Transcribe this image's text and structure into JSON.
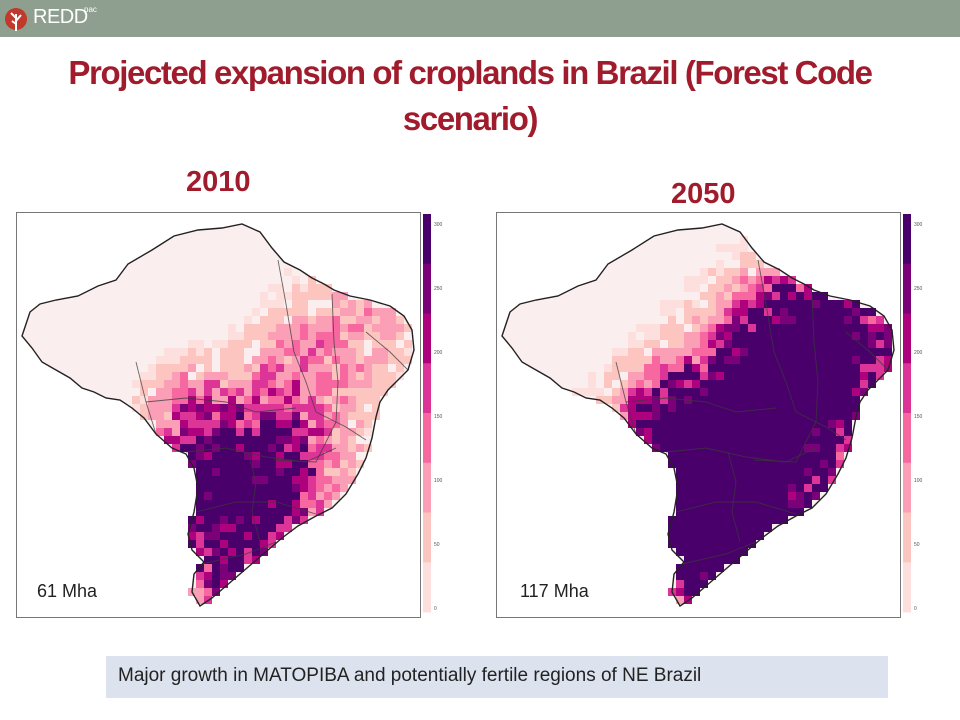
{
  "header": {
    "brand": "REDD",
    "brand_sup": "pac"
  },
  "title": "Projected expansion of croplands in Brazil (Forest Code scenario)",
  "panels": [
    {
      "year": "2010",
      "total": "61 Mha",
      "intensity": 1
    },
    {
      "year": "2050",
      "total": "117 Mha",
      "intensity": 2
    }
  ],
  "legend": {
    "ticks": [
      "300",
      "250",
      "200",
      "150",
      "100",
      "50",
      "0"
    ],
    "colors": [
      "#fde0dd",
      "#fcc5c0",
      "#fa9fb5",
      "#f768a1",
      "#dd3497",
      "#ae017e",
      "#7a0177",
      "#49006a"
    ]
  },
  "caption": "Major growth in MATOPIBA and potentially fertile regions of NE Brazil",
  "colors": {
    "title": "#a01c2c",
    "topbar": "#8e9e8f",
    "map_base": "#fbeeee",
    "caption_bg": "#dde3ee"
  }
}
